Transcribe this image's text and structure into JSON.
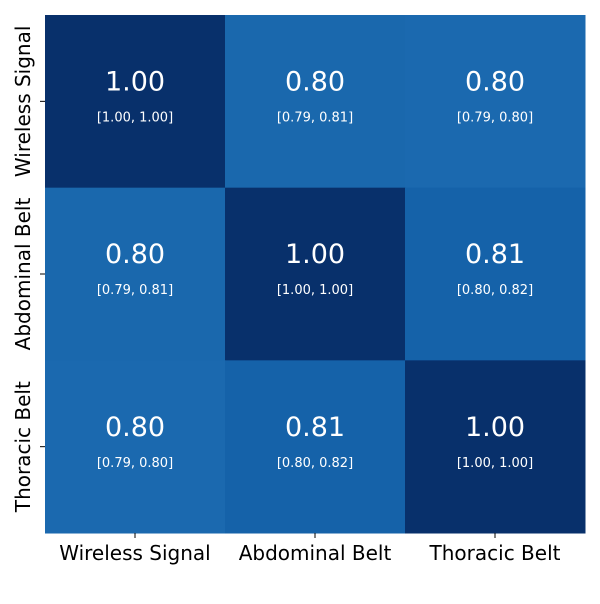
{
  "chart_data": {
    "type": "heatmap",
    "title": "",
    "xlabel": "",
    "ylabel": "",
    "x_categories": [
      "Wireless Signal",
      "Abdominal Belt",
      "Thoracic Belt"
    ],
    "y_categories": [
      "Wireless Signal",
      "Abdominal Belt",
      "Thoracic Belt"
    ],
    "values": [
      [
        1.0,
        0.8,
        0.8
      ],
      [
        0.8,
        1.0,
        0.81
      ],
      [
        0.8,
        0.81,
        1.0
      ]
    ],
    "value_labels": [
      [
        "1.00",
        "0.80",
        "0.80"
      ],
      [
        "0.80",
        "1.00",
        "0.81"
      ],
      [
        "0.80",
        "0.81",
        "1.00"
      ]
    ],
    "ci_labels": [
      [
        "[1.00, 1.00]",
        "[0.79, 0.81]",
        "[0.79, 0.80]"
      ],
      [
        "[0.79, 0.81]",
        "[1.00, 1.00]",
        "[0.80, 0.82]"
      ],
      [
        "[0.79, 0.80]",
        "[0.80, 0.82]",
        "[1.00, 1.00]"
      ]
    ],
    "colorbar": false,
    "grid": false,
    "cell_colors": [
      [
        "#08306b",
        "#1a68ad",
        "#1b69af"
      ],
      [
        "#1a68ad",
        "#08306b",
        "#1562a9"
      ],
      [
        "#1b69af",
        "#1562a9",
        "#08306b"
      ]
    ]
  }
}
